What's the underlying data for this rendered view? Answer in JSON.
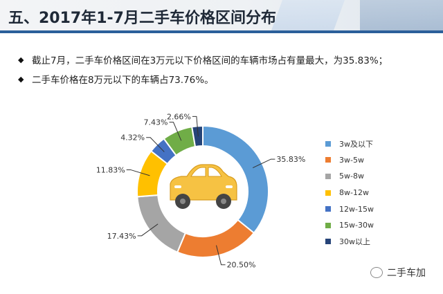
{
  "header": {
    "title": "五、2017年1-7月二手车价格区间分布"
  },
  "bullets": [
    "截止7月，二手车价格区间在3万元以下价格区间的车辆市场占有量最大，为35.83%；",
    "二手车价格在8万元以下的车辆占73.76%。"
  ],
  "chart_data": {
    "type": "pie",
    "title": "",
    "categories": [
      "3w及以下",
      "3w-5w",
      "5w-8w",
      "8w-12w",
      "12w-15w",
      "15w-30w",
      "30w以上"
    ],
    "values": [
      35.83,
      20.5,
      17.43,
      11.83,
      4.32,
      7.43,
      2.66
    ],
    "value_labels": [
      "35.83%",
      "20.50%",
      "17.43%",
      "11.83%",
      "4.32%",
      "7.43%",
      "2.66%"
    ],
    "colors": [
      "#5b9bd5",
      "#ed7d31",
      "#a5a5a5",
      "#ffc000",
      "#4472c4",
      "#70ad47",
      "#264478"
    ],
    "legend_position": "right"
  },
  "watermark": "二手车加"
}
